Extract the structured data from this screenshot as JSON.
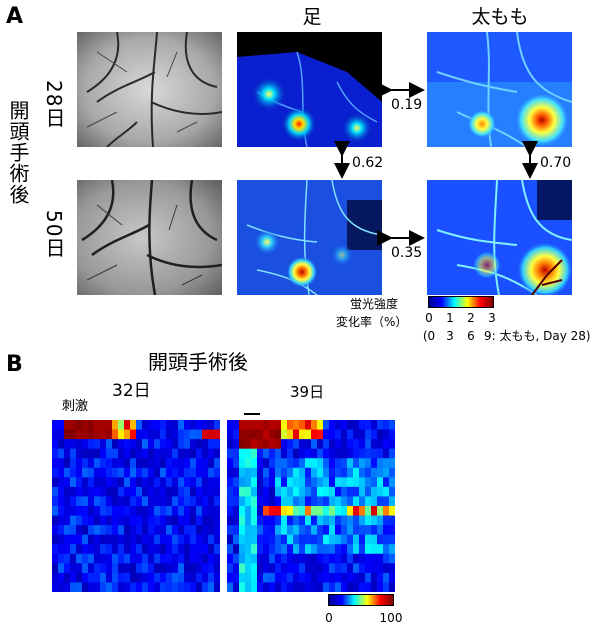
{
  "panel_a": {
    "label": "A",
    "col_titles": [
      "足",
      "太もも"
    ],
    "row_group_label": "開頭手術後",
    "row_labels": [
      "28日",
      "50日"
    ],
    "correlations": {
      "foot_28_thigh_28": "0.19",
      "foot_28_foot_50": "0.62",
      "thigh_28_thigh_50": "0.70",
      "foot_50_thigh_50": "0.35"
    },
    "colorbar": {
      "label_line1": "蛍光強度",
      "label_line2": "変化率（%）",
      "ticks": [
        "0",
        "1",
        "2",
        "3"
      ],
      "ticks_secondary": [
        "(0",
        "3",
        "6",
        "9: 太もも, Day 28)"
      ]
    }
  },
  "panel_b": {
    "label": "B",
    "title": "開頭手術後",
    "left_title": "32日",
    "right_title": "39日",
    "stimulus_label": "刺激",
    "colorbar": {
      "min": "0",
      "max": "100"
    }
  },
  "colors": {
    "heat_low": "#00008f",
    "heat_mid": "#00c8ff",
    "heat_high": "#ffd000",
    "heat_max": "#8b0000"
  }
}
